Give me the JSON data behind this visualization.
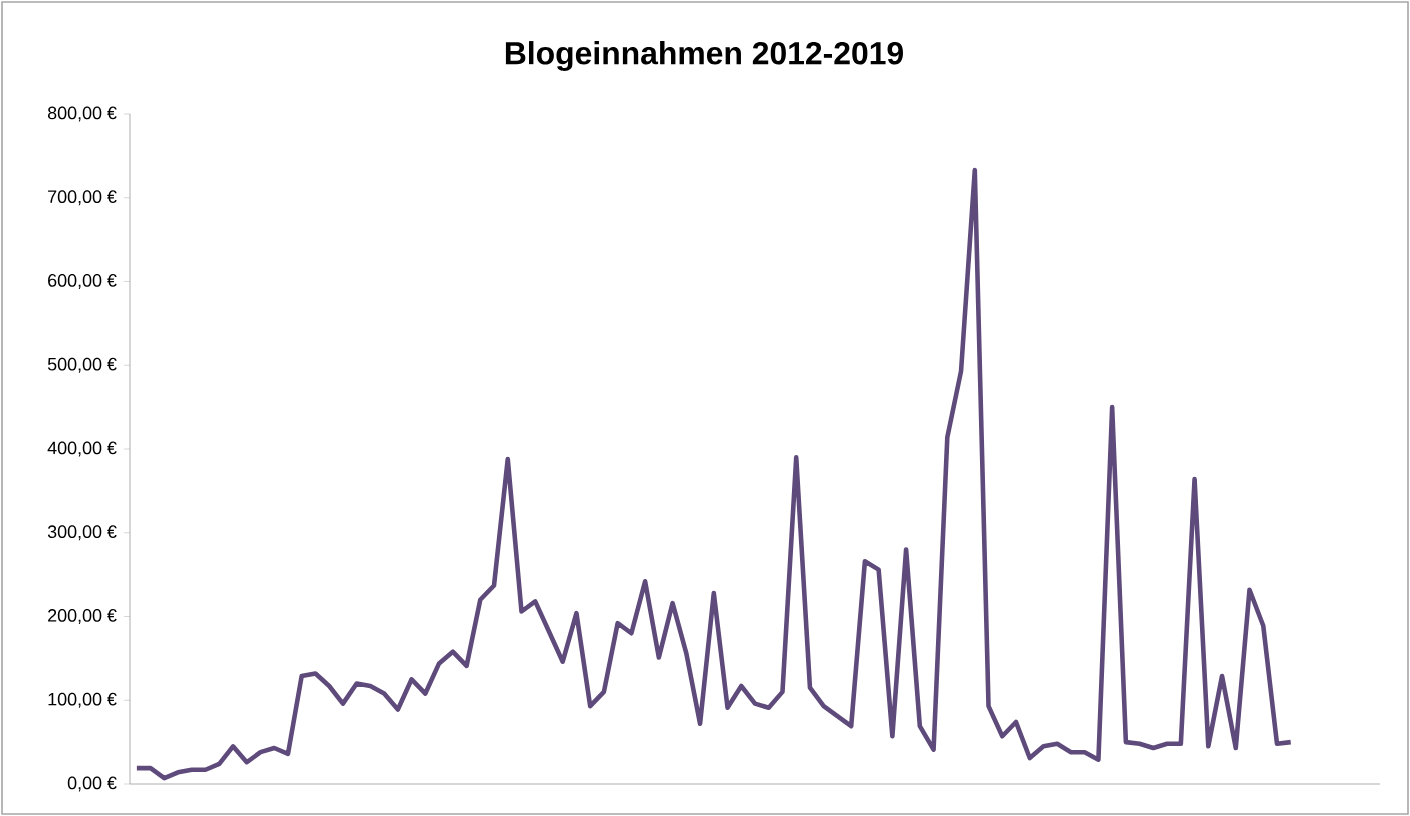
{
  "chart_data": {
    "type": "line",
    "title": "Blogeinnahmen 2012-2019",
    "categories": [
      null,
      null,
      null,
      null,
      null,
      null,
      null,
      null,
      null,
      null,
      null,
      null,
      null,
      null,
      null,
      null,
      null,
      null,
      null,
      null,
      null,
      null,
      null,
      null,
      null,
      null,
      null,
      null,
      null,
      null,
      null,
      null,
      null,
      null,
      null,
      null,
      null,
      null,
      null,
      null,
      null,
      null,
      null,
      null,
      null,
      null,
      null,
      null,
      null,
      null,
      null,
      null,
      null,
      null,
      null,
      null,
      null,
      null,
      null,
      null,
      null,
      null,
      null,
      null,
      null,
      null,
      null,
      null,
      null,
      null,
      null,
      null,
      null,
      null,
      null,
      null,
      null,
      null,
      null,
      null,
      null,
      null,
      null,
      null,
      null,
      null,
      null,
      null,
      null,
      null,
      null
    ],
    "series": [
      {
        "color": "#5f4b7b",
        "values": [
          19,
          19,
          7,
          14,
          17,
          17,
          24,
          45,
          26,
          38,
          43,
          36,
          129,
          132,
          117,
          96,
          120,
          117,
          108,
          89,
          125,
          108,
          144,
          158,
          141,
          220,
          237,
          388,
          206,
          218,
          182,
          146,
          204,
          93,
          110,
          192,
          180,
          242,
          151,
          216,
          156,
          72,
          228,
          91,
          117,
          96,
          91,
          110,
          390,
          115,
          93,
          81,
          69,
          266,
          256,
          57,
          280,
          69,
          41,
          414,
          493,
          733,
          93,
          57,
          74,
          31,
          45,
          48,
          38,
          38,
          29,
          450,
          50,
          48,
          43,
          48,
          48,
          364,
          45,
          129,
          43,
          232,
          189,
          48,
          50,
          null,
          null,
          null,
          null,
          null,
          null
        ]
      }
    ],
    "ylim": [
      0,
      800
    ],
    "yticks": [
      {
        "value": 0,
        "label": "0,00 €"
      },
      {
        "value": 100,
        "label": "100,00 €"
      },
      {
        "value": 200,
        "label": "200,00 €"
      },
      {
        "value": 300,
        "label": "300,00 €"
      },
      {
        "value": 400,
        "label": "400,00 €"
      },
      {
        "value": 500,
        "label": "500,00 €"
      },
      {
        "value": 600,
        "label": "600,00 €"
      },
      {
        "value": 700,
        "label": "700,00 €"
      },
      {
        "value": 800,
        "label": "800,00 €"
      }
    ],
    "tick_labels": "y",
    "marker": "none",
    "line_style": "solid"
  }
}
